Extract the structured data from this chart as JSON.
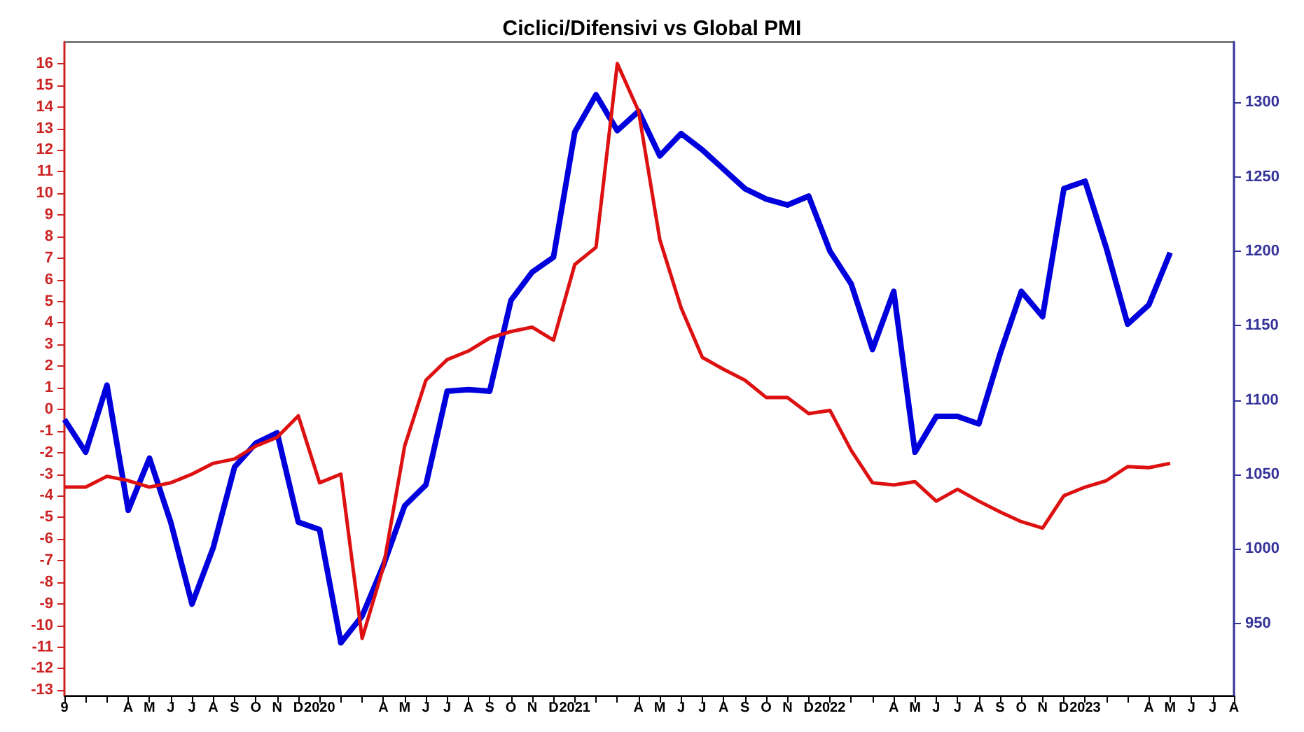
{
  "chart_data": {
    "type": "line",
    "title": "Ciclici/Difensivi vs Global PMI",
    "categories": [
      "9",
      null,
      null,
      "A",
      "M",
      "J",
      "J",
      "A",
      "S",
      "O",
      "N",
      "D",
      "2020",
      null,
      null,
      "A",
      "M",
      "J",
      "J",
      "A",
      "S",
      "O",
      "N",
      "D",
      "2021",
      null,
      null,
      "A",
      "M",
      "J",
      "J",
      "A",
      "S",
      "O",
      "N",
      "D",
      "2022",
      null,
      null,
      "A",
      "M",
      "J",
      "J",
      "A",
      "S",
      "O",
      "N",
      "D",
      "2023",
      null,
      null,
      "A",
      "M",
      "J",
      "J",
      "A"
    ],
    "series": [
      {
        "color": "#0000dd",
        "axis": "y2",
        "values": [
          1087,
          1065,
          1110,
          1026,
          1061,
          1018,
          963,
          1001,
          1055,
          1071,
          1078,
          1018,
          1013,
          937,
          955,
          989,
          1029,
          1043,
          1106,
          1107,
          1106,
          1167,
          1186,
          1196,
          1280,
          1305,
          1281,
          1294,
          1264,
          1279,
          1268,
          1255,
          1242,
          1235,
          1231,
          1237,
          1200,
          1178,
          1134,
          1173,
          1065,
          1089,
          1089,
          1084,
          1131,
          1173,
          1156,
          1242,
          1247,
          1202,
          1151,
          1164,
          1199,
          null,
          null,
          null
        ]
      },
      {
        "color": "#dd1111",
        "values": [
          -3.6,
          -3.6,
          -3.1,
          -3.3,
          -3.6,
          -3.4,
          -3,
          -2.5,
          -2.3,
          -1.7,
          -1.3,
          -0.3,
          -3.4,
          -3,
          -10.6,
          -7.3,
          -1.7,
          1.35,
          2.3,
          2.7,
          3.3,
          3.6,
          3.8,
          3.2,
          6.7,
          7.5,
          16,
          13.8,
          7.85,
          4.7,
          2.4,
          1.85,
          1.35,
          0.55,
          0.55,
          -0.2,
          -0.05,
          -1.9,
          -3.4,
          -3.5,
          -3.35,
          -4.25,
          -3.7,
          -4.25,
          -4.75,
          -5.2,
          -5.5,
          -4,
          -3.6,
          -3.3,
          -2.65,
          -2.7,
          -2.5,
          null,
          null,
          null
        ]
      }
    ],
    "ylim": [
      -13.25,
      17
    ],
    "yticks": [
      -13,
      -12,
      -11,
      -10,
      -9,
      -8,
      -7,
      -6,
      -5,
      -4,
      -3,
      -2,
      -1,
      0,
      1,
      2,
      3,
      4,
      5,
      6,
      7,
      8,
      9,
      10,
      11,
      12,
      13,
      14,
      15,
      16
    ],
    "y2lim": [
      901.5,
      1340.5
    ],
    "y2ticks": [
      950,
      1000,
      1050,
      1100,
      1150,
      1200,
      1250,
      1300
    ],
    "marker": "none",
    "grid": false
  }
}
